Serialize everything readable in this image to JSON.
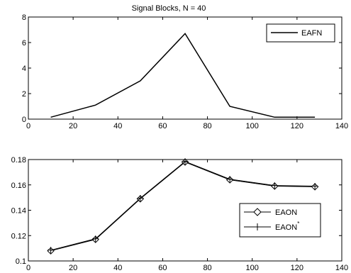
{
  "chart_data": [
    {
      "type": "line",
      "title": "Signal Blocks, N = 40",
      "xlabel": "",
      "ylabel": "",
      "xlim": [
        0,
        140
      ],
      "ylim": [
        0,
        8
      ],
      "xticks": [
        0,
        20,
        40,
        60,
        80,
        100,
        120,
        140
      ],
      "yticks": [
        0,
        2,
        4,
        6,
        8
      ],
      "ytick_labels": [
        "0",
        "2",
        "4",
        "6",
        "8"
      ],
      "grid": false,
      "legend_position": "top-right",
      "series": [
        {
          "name": "EAFN",
          "color": "#000000",
          "marker": "none",
          "x": [
            10,
            30,
            50,
            70,
            90,
            110,
            128
          ],
          "y": [
            0.15,
            1.1,
            3.0,
            6.7,
            1.0,
            0.15,
            0.15
          ]
        }
      ]
    },
    {
      "type": "line",
      "title": "",
      "xlabel": "",
      "ylabel": "",
      "xlim": [
        0,
        140
      ],
      "ylim": [
        0.1,
        0.18
      ],
      "xticks": [
        0,
        20,
        40,
        60,
        80,
        100,
        120,
        140
      ],
      "yticks": [
        0.1,
        0.12,
        0.14,
        0.16,
        0.18
      ],
      "ytick_labels": [
        "0.1",
        "0.12",
        "0.14",
        "0.16",
        "0.18"
      ],
      "grid": false,
      "legend_position": "bottom-right",
      "series": [
        {
          "name": "EAON",
          "color": "#000000",
          "marker": "diamond",
          "x": [
            10,
            30,
            50,
            70,
            90,
            110,
            128
          ],
          "y": [
            0.108,
            0.117,
            0.149,
            0.178,
            0.164,
            0.159,
            0.1585
          ]
        },
        {
          "name": "EAON",
          "name_superscript": "*",
          "color": "#000000",
          "marker": "plus",
          "x": [
            10,
            30,
            50,
            70,
            90,
            110,
            128
          ],
          "y": [
            0.1085,
            0.1175,
            0.1495,
            0.1785,
            0.1645,
            0.1595,
            0.159
          ]
        }
      ]
    }
  ]
}
